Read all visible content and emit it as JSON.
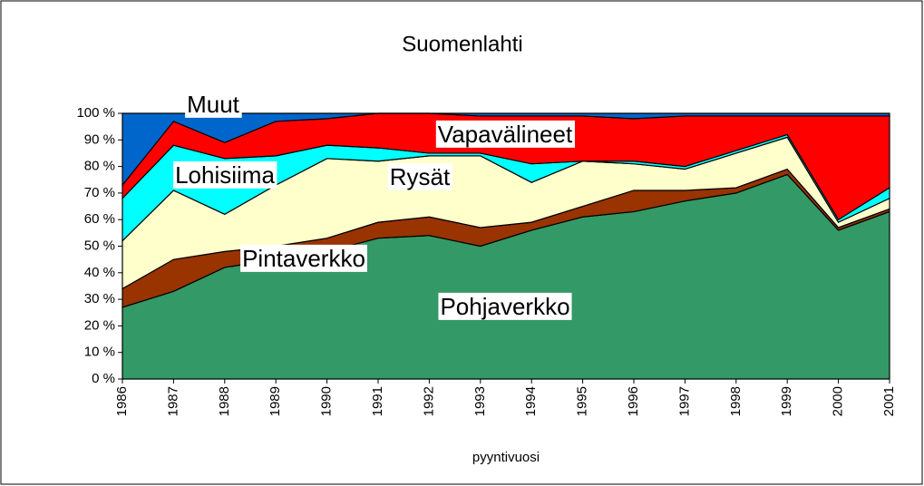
{
  "chart_data": {
    "type": "area",
    "stacked": true,
    "title": "Suomenlahti",
    "x_label": "pyyntivuosi",
    "categories": [
      "1986",
      "1987",
      "1988",
      "1989",
      "1990",
      "1991",
      "1992",
      "1993",
      "1994",
      "1995",
      "1996",
      "1997",
      "1998",
      "1999",
      "2000",
      "2001"
    ],
    "series": [
      {
        "name": "Pohjaverkko",
        "color": "#339966",
        "values": [
          27,
          33,
          42,
          45,
          48,
          53,
          54,
          50,
          56,
          61,
          63,
          67,
          70,
          77,
          56,
          63
        ]
      },
      {
        "name": "Pintaverkko",
        "color": "#993300",
        "values": [
          7,
          12,
          6,
          5,
          5,
          6,
          7,
          7,
          3,
          4,
          8,
          4,
          2,
          2,
          1,
          1
        ]
      },
      {
        "name": "Rysät",
        "color": "#ffffcc",
        "values": [
          18,
          26,
          14,
          23,
          30,
          23,
          23,
          27,
          15,
          17,
          10,
          8,
          13,
          12,
          2,
          4
        ]
      },
      {
        "name": "Lohisiima",
        "color": "#00ffff",
        "values": [
          16,
          17,
          21,
          11,
          5,
          5,
          1,
          1,
          7,
          0,
          1,
          1,
          1,
          1,
          1,
          4
        ]
      },
      {
        "name": "Vapavälineet",
        "color": "#ff0000",
        "values": [
          5,
          9,
          6,
          13,
          10,
          13,
          15,
          14,
          18,
          17,
          16,
          19,
          13,
          7,
          39,
          27
        ]
      },
      {
        "name": "Muut",
        "color": "#0066cc",
        "values": [
          27,
          3,
          11,
          3,
          2,
          0,
          0,
          1,
          1,
          1,
          2,
          1,
          1,
          1,
          1,
          1
        ]
      }
    ],
    "ylim": [
      0,
      100
    ],
    "yticks": [
      {
        "value": 0,
        "label": "0 %"
      },
      {
        "value": 10,
        "label": "10 %"
      },
      {
        "value": 20,
        "label": "20 %"
      },
      {
        "value": 30,
        "label": "30 %"
      },
      {
        "value": 40,
        "label": "40 %"
      },
      {
        "value": 50,
        "label": "50 %"
      },
      {
        "value": 60,
        "label": "60 %"
      },
      {
        "value": 70,
        "label": "70 %"
      },
      {
        "value": 80,
        "label": "80 %"
      },
      {
        "value": 90,
        "label": "90 %"
      },
      {
        "value": 100,
        "label": "100 %"
      }
    ]
  }
}
